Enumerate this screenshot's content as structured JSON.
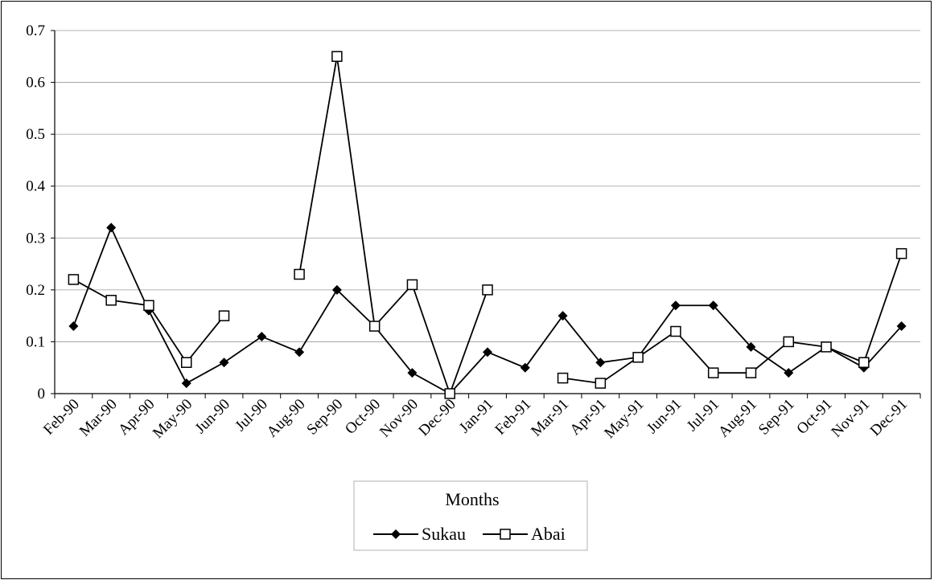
{
  "chart_data": {
    "type": "line",
    "xlabel": "Months",
    "ylabel": "",
    "ylim": [
      0,
      0.7
    ],
    "yticks": [
      0,
      0.1,
      0.2,
      0.3,
      0.4,
      0.5,
      0.6,
      0.7
    ],
    "grid": true,
    "legend_position": "bottom-center",
    "categories": [
      "Feb-90",
      "Mar-90",
      "Apr-90",
      "May-90",
      "Jun-90",
      "Jul-90",
      "Aug-90",
      "Sep-90",
      "Oct-90",
      "Nov-90",
      "Dec-90",
      "Jan-91",
      "Feb-91",
      "Mar-91",
      "Apr-91",
      "May-91",
      "Jun-91",
      "Jul-91",
      "Aug-91",
      "Sep-91",
      "Oct-91",
      "Nov-91",
      "Dec-91"
    ],
    "series": [
      {
        "name": "Sukau",
        "marker": "filled-diamond",
        "color": "#000000",
        "values": [
          0.13,
          0.32,
          0.16,
          0.02,
          0.06,
          0.11,
          0.08,
          0.2,
          0.13,
          0.04,
          0.0,
          0.08,
          0.05,
          0.15,
          0.06,
          0.07,
          0.17,
          0.17,
          0.09,
          0.04,
          0.09,
          0.05,
          0.13
        ]
      },
      {
        "name": "Abai",
        "marker": "open-square",
        "color": "#000000",
        "values": [
          0.22,
          0.18,
          0.17,
          0.06,
          0.15,
          null,
          0.23,
          0.65,
          0.13,
          0.21,
          0.0,
          0.2,
          null,
          0.03,
          0.02,
          0.07,
          0.12,
          0.04,
          0.04,
          0.1,
          0.09,
          0.06,
          0.27
        ]
      }
    ]
  }
}
